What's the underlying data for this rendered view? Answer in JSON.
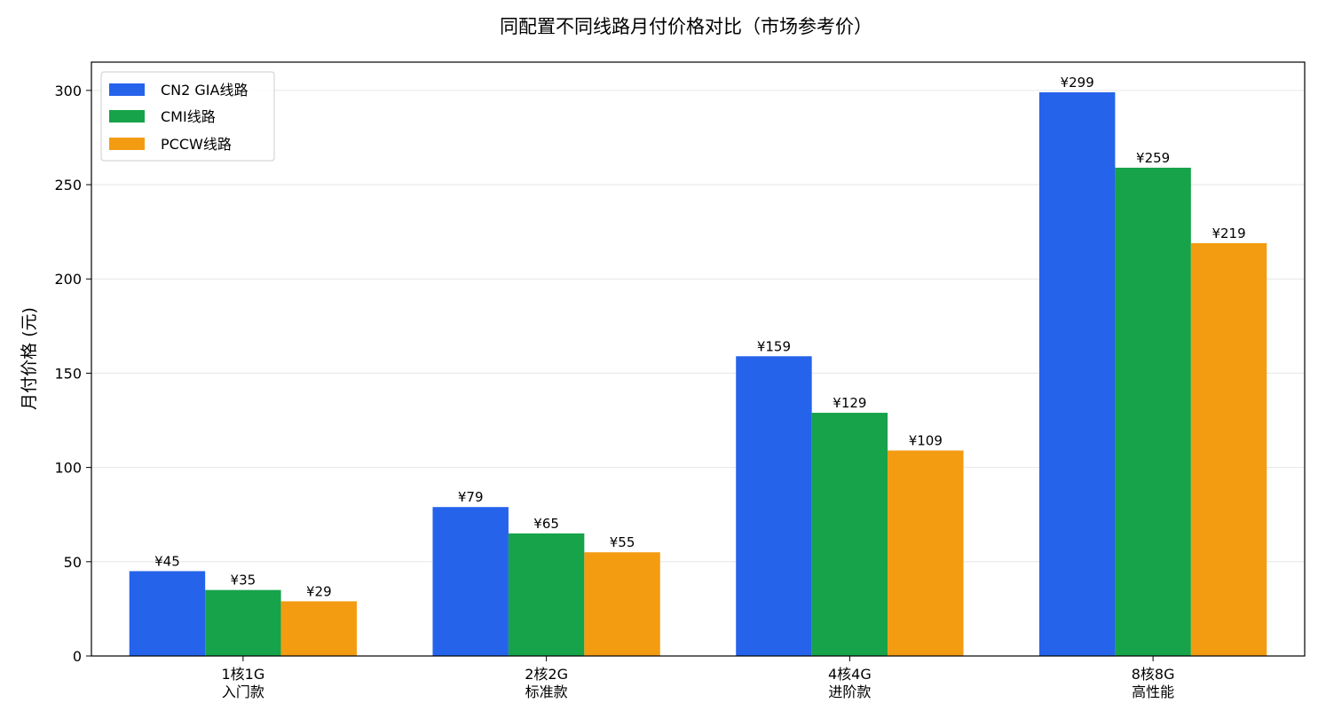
{
  "chart_data": {
    "type": "bar",
    "title": "同配置不同线路月付价格对比（市场参考价）",
    "xlabel": "",
    "ylabel": "月付价格 (元)",
    "ylim": [
      0,
      315
    ],
    "yticks": [
      0,
      50,
      100,
      150,
      200,
      250,
      300
    ],
    "grid": "y",
    "legend_position": "top-left",
    "value_prefix": "¥",
    "categories": [
      "1核1G",
      "2核2G",
      "4核4G",
      "8核8G"
    ],
    "category_sublabels": [
      "入门款",
      "标准款",
      "进阶款",
      "高性能"
    ],
    "series": [
      {
        "name": "CN2 GIA线路",
        "color": "#2563eb",
        "values": [
          45,
          79,
          159,
          299
        ]
      },
      {
        "name": "CMI线路",
        "color": "#16a34a",
        "values": [
          35,
          65,
          129,
          259
        ]
      },
      {
        "name": "PCCW线路",
        "color": "#f39c12",
        "values": [
          29,
          55,
          109,
          219
        ]
      }
    ]
  }
}
